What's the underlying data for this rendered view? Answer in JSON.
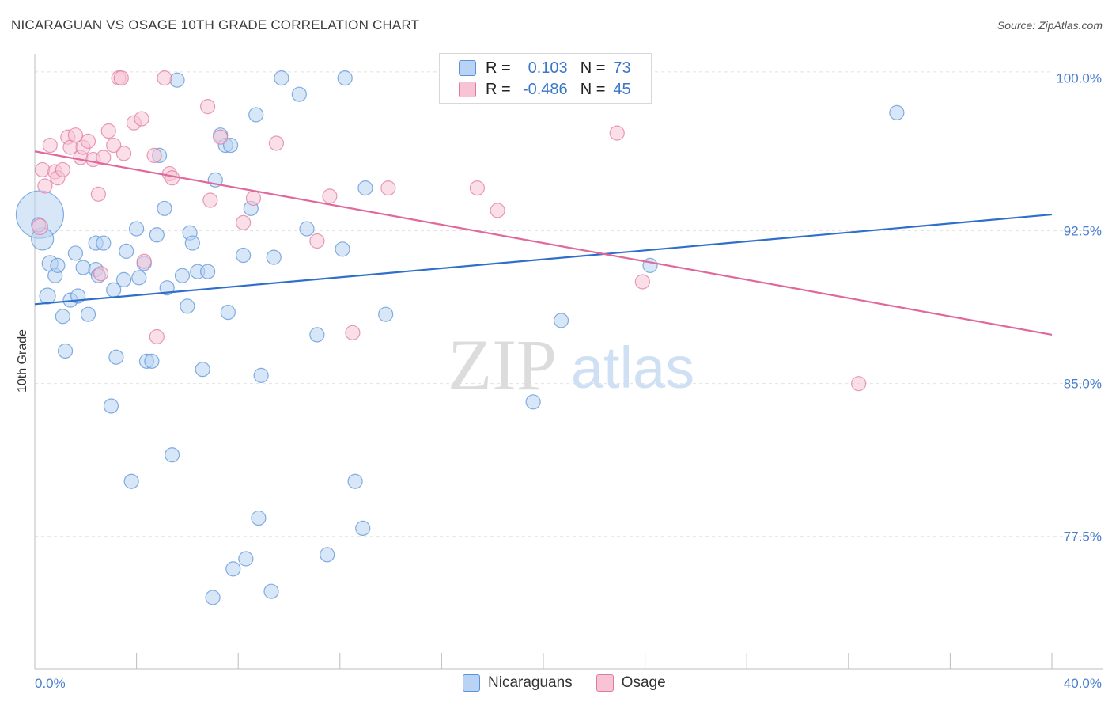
{
  "header": {
    "title": "NICARAGUAN VS OSAGE 10TH GRADE CORRELATION CHART",
    "source": "Source: ZipAtlas.com"
  },
  "watermark": {
    "zip": "ZIP",
    "atlas": "atlas"
  },
  "legend": {
    "rows": [
      {
        "r_label": "R =",
        "r_value": "0.103",
        "n_label": "N =",
        "n_value": "73",
        "color": "#5b93d8",
        "fill": "#b8d3f3"
      },
      {
        "r_label": "R =",
        "r_value": "-0.486",
        "n_label": "N =",
        "n_value": "45",
        "color": "#e07aa0",
        "fill": "#f8c4d5"
      }
    ]
  },
  "bottom_legend": [
    {
      "label": "Nicaraguans",
      "color": "#5b93d8",
      "fill": "#b8d3f3"
    },
    {
      "label": "Osage",
      "color": "#e07aa0",
      "fill": "#f8c4d5"
    }
  ],
  "chart_data": {
    "type": "scatter",
    "title": "NICARAGUAN VS OSAGE 10TH GRADE CORRELATION CHART",
    "ylabel": "10th Grade",
    "xlabel": "",
    "xlim": [
      0,
      40
    ],
    "ylim": [
      71.0,
      101.5
    ],
    "x_tick_labels": [
      {
        "value": 0,
        "label": "0.0%"
      },
      {
        "value": 40,
        "label": "40.0%"
      }
    ],
    "y_tick_labels": [
      {
        "value": 100,
        "label": "100.0%"
      },
      {
        "value": 92.5,
        "label": "92.5%"
      },
      {
        "value": 85,
        "label": "85.0%"
      },
      {
        "value": 77.5,
        "label": "77.5%"
      }
    ],
    "grid": true,
    "series": [
      {
        "name": "Nicaraguans",
        "color": "#5b93d8",
        "fill": "#b8d3f3",
        "trend": {
          "x": [
            0,
            40
          ],
          "y": [
            88.9,
            93.3
          ]
        },
        "points": [
          [
            0.2,
            93.3,
            30
          ],
          [
            0.3,
            92.1,
            14
          ],
          [
            0.5,
            89.3,
            10
          ],
          [
            0.6,
            90.9,
            10
          ],
          [
            0.8,
            90.3,
            9
          ],
          [
            0.9,
            90.8,
            9
          ],
          [
            1.1,
            88.3,
            9
          ],
          [
            1.2,
            86.6,
            9
          ],
          [
            1.4,
            89.1,
            9
          ],
          [
            1.6,
            91.4,
            9
          ],
          [
            1.7,
            89.3,
            9
          ],
          [
            1.9,
            90.7,
            9
          ],
          [
            2.1,
            88.4,
            9
          ],
          [
            2.4,
            90.6,
            9
          ],
          [
            2.4,
            91.9,
            9
          ],
          [
            2.5,
            90.3,
            9
          ],
          [
            2.7,
            91.9,
            9
          ],
          [
            3.1,
            89.6,
            9
          ],
          [
            3.2,
            86.3,
            9
          ],
          [
            3.0,
            83.9,
            9
          ],
          [
            3.5,
            90.1,
            9
          ],
          [
            3.6,
            91.5,
            9
          ],
          [
            3.8,
            80.2,
            9
          ],
          [
            4.0,
            92.6,
            9
          ],
          [
            4.1,
            90.2,
            9
          ],
          [
            4.3,
            90.9,
            9
          ],
          [
            4.4,
            86.1,
            9
          ],
          [
            4.6,
            86.1,
            9
          ],
          [
            4.8,
            92.3,
            9
          ],
          [
            4.9,
            96.2,
            9
          ],
          [
            5.1,
            93.6,
            9
          ],
          [
            5.2,
            89.7,
            9
          ],
          [
            5.4,
            81.5,
            9
          ],
          [
            5.6,
            99.9,
            9
          ],
          [
            5.8,
            90.3,
            9
          ],
          [
            6.0,
            88.8,
            9
          ],
          [
            6.1,
            92.4,
            9
          ],
          [
            6.2,
            91.9,
            9
          ],
          [
            6.4,
            90.5,
            9
          ],
          [
            6.6,
            85.7,
            9
          ],
          [
            6.8,
            90.5,
            9
          ],
          [
            7.0,
            74.5,
            9
          ],
          [
            7.1,
            95.0,
            9
          ],
          [
            7.3,
            97.2,
            9
          ],
          [
            7.5,
            96.7,
            9
          ],
          [
            7.6,
            88.5,
            9
          ],
          [
            7.8,
            75.9,
            9
          ],
          [
            7.7,
            96.7,
            9
          ],
          [
            8.2,
            91.3,
            9
          ],
          [
            8.3,
            76.4,
            9
          ],
          [
            8.5,
            93.6,
            9
          ],
          [
            8.7,
            98.2,
            9
          ],
          [
            8.8,
            78.4,
            9
          ],
          [
            8.9,
            85.4,
            9
          ],
          [
            9.3,
            74.8,
            9
          ],
          [
            9.4,
            91.2,
            9
          ],
          [
            9.7,
            100.0,
            9
          ],
          [
            10.4,
            99.2,
            9
          ],
          [
            10.7,
            92.6,
            9
          ],
          [
            11.1,
            87.4,
            9
          ],
          [
            11.5,
            76.6,
            9
          ],
          [
            12.1,
            91.6,
            9
          ],
          [
            12.2,
            100.0,
            9
          ],
          [
            12.6,
            80.2,
            9
          ],
          [
            12.9,
            77.9,
            9
          ],
          [
            13.0,
            94.6,
            9
          ],
          [
            13.8,
            88.4,
            9
          ],
          [
            19.6,
            84.1,
            9
          ],
          [
            20.7,
            88.1,
            9
          ],
          [
            21.6,
            100.0,
            9
          ],
          [
            24.2,
            90.8,
            9
          ],
          [
            33.9,
            98.3,
            9
          ],
          [
            0.15,
            92.8,
            9
          ]
        ]
      },
      {
        "name": "Osage",
        "color": "#e07aa0",
        "fill": "#f8c4d5",
        "trend": {
          "x": [
            0,
            40
          ],
          "y": [
            96.4,
            87.4
          ]
        },
        "points": [
          [
            0.2,
            92.7,
            10
          ],
          [
            0.3,
            95.5,
            9
          ],
          [
            0.4,
            94.7,
            9
          ],
          [
            0.6,
            96.7,
            9
          ],
          [
            0.8,
            95.4,
            9
          ],
          [
            0.9,
            95.1,
            9
          ],
          [
            1.1,
            95.5,
            9
          ],
          [
            1.3,
            97.1,
            9
          ],
          [
            1.4,
            96.6,
            9
          ],
          [
            1.6,
            97.2,
            9
          ],
          [
            1.8,
            96.1,
            9
          ],
          [
            1.9,
            96.6,
            9
          ],
          [
            2.1,
            96.9,
            9
          ],
          [
            2.3,
            96.0,
            9
          ],
          [
            2.5,
            94.3,
            9
          ],
          [
            2.6,
            90.4,
            9
          ],
          [
            2.7,
            96.1,
            9
          ],
          [
            2.9,
            97.4,
            9
          ],
          [
            3.1,
            96.7,
            9
          ],
          [
            3.3,
            100.0,
            9
          ],
          [
            3.4,
            100.0,
            9
          ],
          [
            3.5,
            96.3,
            9
          ],
          [
            3.9,
            97.8,
            9
          ],
          [
            4.2,
            98.0,
            9
          ],
          [
            4.3,
            91.0,
            9
          ],
          [
            4.7,
            96.2,
            9
          ],
          [
            4.8,
            87.3,
            9
          ],
          [
            5.1,
            100.0,
            9
          ],
          [
            5.3,
            95.3,
            9
          ],
          [
            5.4,
            95.1,
            9
          ],
          [
            6.8,
            98.6,
            9
          ],
          [
            6.9,
            94.0,
            9
          ],
          [
            7.3,
            97.1,
            9
          ],
          [
            8.2,
            92.9,
            9
          ],
          [
            8.6,
            94.1,
            9
          ],
          [
            9.5,
            96.8,
            9
          ],
          [
            11.1,
            92.0,
            9
          ],
          [
            11.6,
            94.2,
            9
          ],
          [
            12.5,
            87.5,
            9
          ],
          [
            13.9,
            94.6,
            9
          ],
          [
            17.4,
            94.6,
            9
          ],
          [
            18.2,
            93.5,
            9
          ],
          [
            22.9,
            97.3,
            9
          ],
          [
            23.9,
            90.0,
            9
          ],
          [
            32.4,
            85.0,
            9
          ]
        ]
      }
    ]
  }
}
